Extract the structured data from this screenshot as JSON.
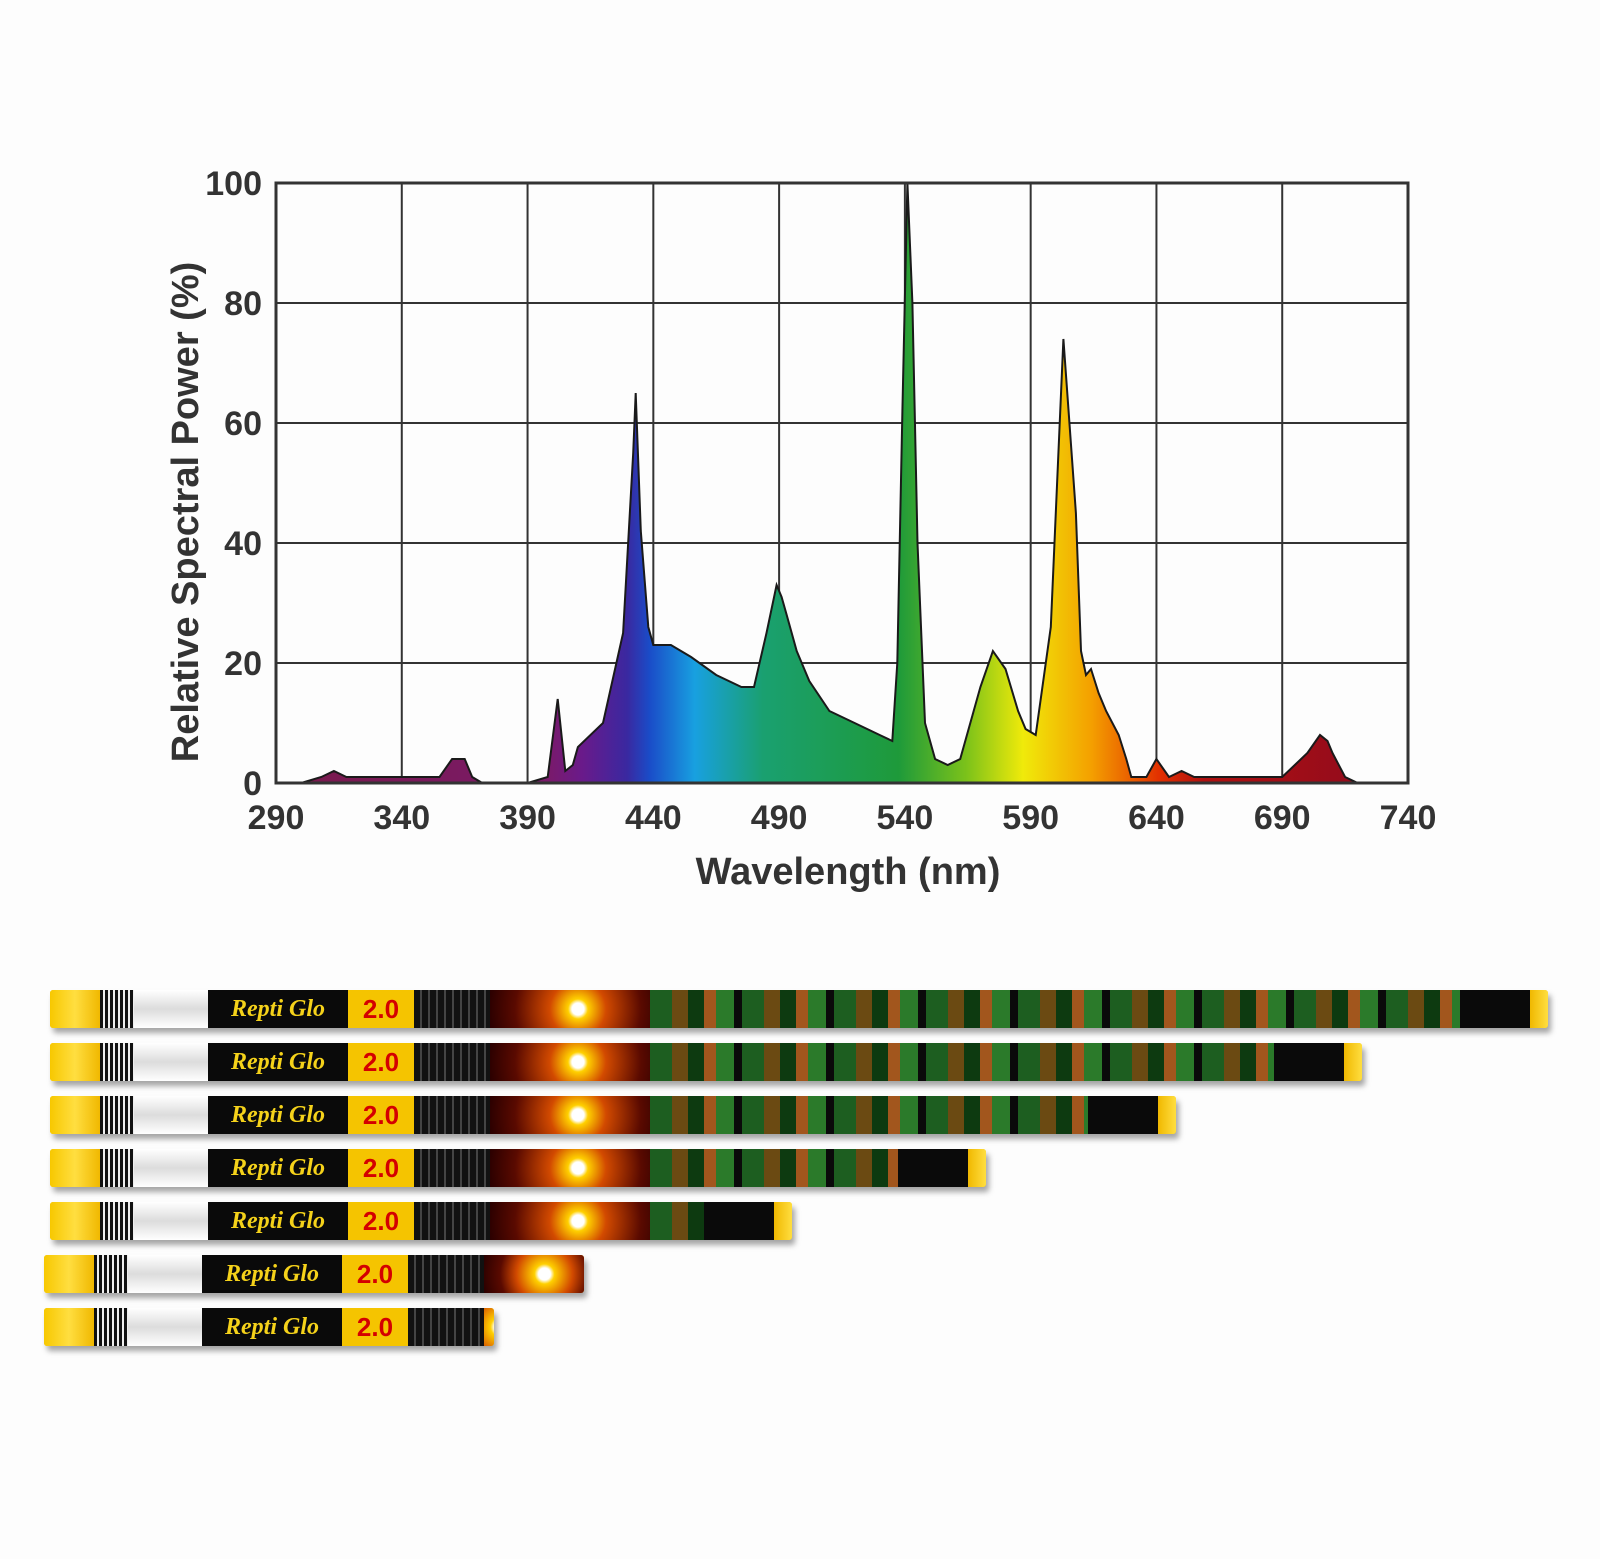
{
  "chart_data": {
    "type": "area",
    "title": "",
    "xlabel": "Wavelength (nm)",
    "ylabel": "Relative Spectral Power (%)",
    "xlim": [
      290,
      740
    ],
    "ylim": [
      0,
      100
    ],
    "x_ticks": [
      290,
      340,
      390,
      440,
      490,
      540,
      590,
      640,
      690,
      740
    ],
    "y_ticks": [
      0,
      20,
      40,
      60,
      80,
      100
    ],
    "grid": true,
    "fill": "spectral gradient (violet to red)",
    "series": [
      {
        "x": [
          290,
          300,
          308,
          313,
          318,
          325,
          340,
          355,
          360,
          365,
          368,
          372,
          380,
          390,
          398,
          402,
          405,
          408,
          410,
          420,
          428,
          432,
          433,
          435,
          438,
          440,
          447,
          455,
          465,
          475,
          480,
          485,
          489,
          491,
          493,
          497,
          502,
          510,
          520,
          530,
          535,
          537,
          539,
          541,
          543,
          545,
          548,
          552,
          557,
          562,
          570,
          575,
          580,
          585,
          588,
          592,
          598,
          603,
          608,
          610,
          612,
          614,
          617,
          620,
          625,
          628,
          630,
          632,
          636,
          640,
          645,
          650,
          655,
          660,
          670,
          680,
          690,
          700,
          705,
          708,
          710,
          715,
          720,
          740
        ],
        "y": [
          0,
          0,
          1,
          2,
          1,
          1,
          1,
          1,
          4,
          4,
          1,
          0,
          0,
          0,
          1,
          14,
          2,
          3,
          6,
          10,
          25,
          55,
          65,
          42,
          26,
          23,
          23,
          21,
          18,
          16,
          16,
          25,
          33,
          31,
          28,
          22,
          17,
          12,
          10,
          8,
          7,
          20,
          62,
          100,
          80,
          40,
          10,
          4,
          3,
          4,
          16,
          22,
          19,
          12,
          9,
          8,
          26,
          74,
          45,
          22,
          18,
          19,
          15,
          12,
          8,
          4,
          1,
          1,
          1,
          4,
          1,
          2,
          1,
          1,
          1,
          1,
          1,
          5,
          8,
          7,
          5,
          1,
          0,
          0
        ]
      }
    ]
  },
  "products": {
    "tube_brand": "Repti Glo",
    "tube_grade": "2.0",
    "tube_count": 7
  }
}
